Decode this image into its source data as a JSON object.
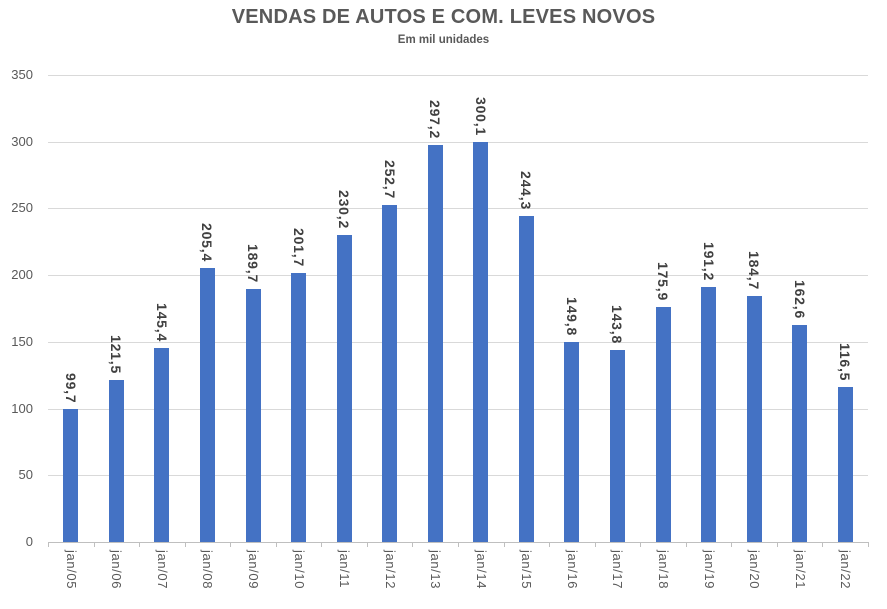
{
  "chart_data": {
    "type": "bar",
    "title": "VENDAS DE AUTOS E COM. LEVES NOVOS",
    "subtitle": "Em mil unidades",
    "categories": [
      "jan/05",
      "jan/06",
      "jan/07",
      "jan/08",
      "jan/09",
      "jan/10",
      "jan/11",
      "jan/12",
      "jan/13",
      "jan/14",
      "jan/15",
      "jan/16",
      "jan/17",
      "jan/18",
      "jan/19",
      "jan/20",
      "jan/21",
      "jan/22"
    ],
    "values": [
      99.7,
      121.5,
      145.4,
      205.4,
      189.7,
      201.7,
      230.2,
      252.7,
      297.2,
      300.1,
      244.3,
      149.8,
      143.8,
      175.9,
      191.2,
      184.7,
      162.6,
      116.5
    ],
    "value_labels": [
      "99,7",
      "121,5",
      "145,4",
      "205,4",
      "189,7",
      "201,7",
      "230,2",
      "252,7",
      "297,2",
      "300,1",
      "244,3",
      "149,8",
      "143,8",
      "175,9",
      "191,2",
      "184,7",
      "162,6",
      "116,5"
    ],
    "ylim": [
      0,
      350
    ],
    "yticks": [
      0,
      50,
      100,
      150,
      200,
      250,
      300,
      350
    ],
    "grid": true,
    "legend": "none",
    "label_rotation": "vertical-read-down",
    "colors": {
      "bar": "#4472C4",
      "title_text": "#595959",
      "axis_text": "#595959",
      "value_label_text": "#404040",
      "gridline": "#D9D9D9",
      "axis_line": "#BFBFBF"
    }
  }
}
